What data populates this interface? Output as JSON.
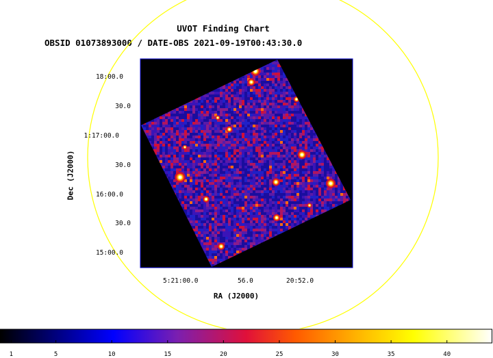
{
  "header": {
    "title": "UVOT Finding Chart",
    "subtitle": "OBSID 01073893000 / DATE-OBS 2021-09-19T00:43:30.0"
  },
  "axes": {
    "xlabel": "RA (J2000)",
    "ylabel": "Dec (J2000)",
    "xticks": [
      "5:21:00.0",
      "56.0",
      "20:52.0"
    ],
    "yticks": [
      "18:00.0",
      "30.0",
      "1:17:00.0",
      "30.0",
      "16:00.0",
      "30.0",
      "15:00.0"
    ]
  },
  "colorbar": {
    "ticks": [
      "1",
      "5",
      "10",
      "15",
      "20",
      "25",
      "30",
      "35",
      "40"
    ],
    "range": [
      0,
      44
    ]
  },
  "colors": {
    "frame": "#0000cc",
    "circle": "#ffff00",
    "field_background": "#000000",
    "image_base": "#2b1bb0"
  },
  "chart_data": {
    "type": "heatmap",
    "title": "UVOT Finding Chart",
    "subtitle": "OBSID 01073893000 / DATE-OBS 2021-09-19T00:43:30.0",
    "xlabel": "RA (J2000)",
    "ylabel": "Dec (J2000)",
    "x_ticks": [
      "5:21:00.0",
      "56.0",
      "20:52.0"
    ],
    "y_ticks": [
      "18:00.0",
      "30.0",
      "1:17:00.0",
      "30.0",
      "16:00.0",
      "30.0",
      "15:00.0"
    ],
    "colorbar_ticks": [
      1,
      5,
      10,
      15,
      20,
      25,
      30,
      35,
      40
    ],
    "value_range": [
      0,
      44
    ],
    "colormap": "black-blue-purple-red-orange-yellow-white",
    "grid": false
  }
}
